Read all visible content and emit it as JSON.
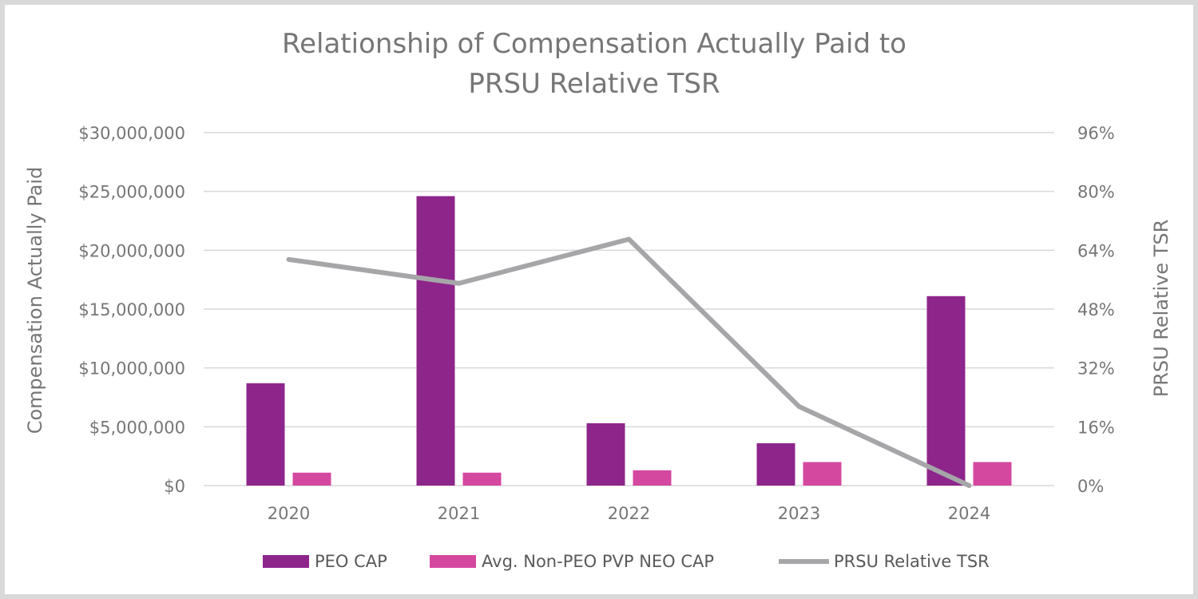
{
  "chart_data": {
    "type": "bar",
    "title": [
      "Relationship of Compensation Actually Paid to",
      "PRSU Relative TSR"
    ],
    "xlabel": "",
    "ylabel": "Compensation Actually Paid",
    "y2label": "PRSU Relative TSR",
    "categories": [
      "2020",
      "2021",
      "2022",
      "2023",
      "2024"
    ],
    "ylim": [
      0,
      30000000
    ],
    "y_ticks": [
      0,
      5000000,
      10000000,
      15000000,
      20000000,
      25000000,
      30000000
    ],
    "y_tick_labels": [
      "$0",
      "$5,000,000",
      "$10,000,000",
      "$15,000,000",
      "$20,000,000",
      "$25,000,000",
      "$30,000,000"
    ],
    "y2lim": [
      0,
      96
    ],
    "y2_ticks": [
      0,
      16,
      32,
      48,
      64,
      80,
      96
    ],
    "y2_tick_labels": [
      "0%",
      "16%",
      "32%",
      "48%",
      "64%",
      "80%",
      "96%"
    ],
    "grid": true,
    "legend_position": "bottom",
    "series": [
      {
        "name": "PEO CAP",
        "type": "bar",
        "axis": "left",
        "color": "#8e258b",
        "values": [
          8700000,
          24600000,
          5300000,
          3600000,
          16100000
        ]
      },
      {
        "name": "Avg. Non-PEO PVP NEO CAP",
        "type": "bar",
        "axis": "left",
        "color": "#d5489f",
        "values": [
          1100000,
          1100000,
          1300000,
          2000000,
          2000000
        ]
      },
      {
        "name": "PRSU Relative TSR",
        "type": "line",
        "axis": "right",
        "color": "#a6a6a9",
        "values": [
          61.5,
          55,
          67,
          21.5,
          0
        ]
      }
    ]
  }
}
